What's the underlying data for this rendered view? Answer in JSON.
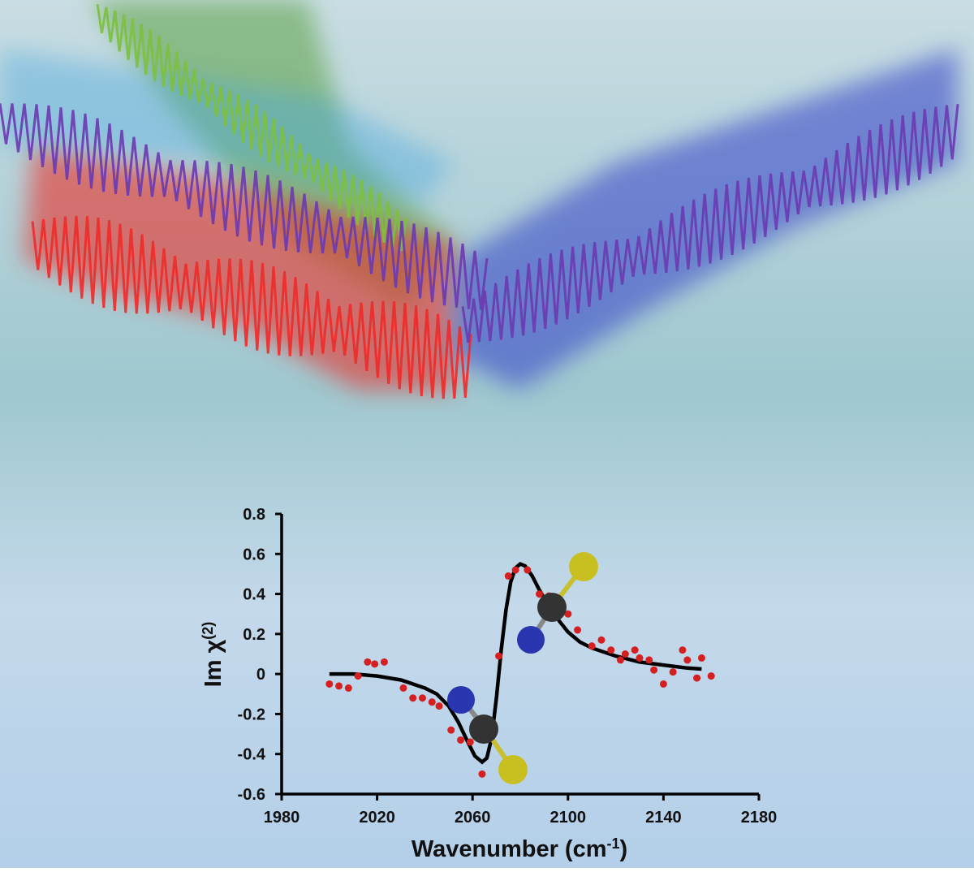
{
  "chart_data": {
    "type": "scatter",
    "xlabel": {
      "text": "Wavenumber (cm",
      "superscript": "-1",
      "suffix": ")"
    },
    "ylabel": {
      "text": "Im χ",
      "superscript": "(2)"
    },
    "xlim": [
      1980,
      2180
    ],
    "ylim": [
      -0.6,
      0.8
    ],
    "xticks": [
      1980,
      2020,
      2060,
      2100,
      2140,
      2180
    ],
    "yticks": [
      -0.6,
      -0.4,
      -0.2,
      0,
      0.2,
      0.4,
      0.6,
      0.8
    ],
    "series": [
      {
        "type": "line",
        "color": "#000000",
        "x": [
          2000,
          2010,
          2020,
          2030,
          2040,
          2045,
          2050,
          2054,
          2058,
          2061,
          2064,
          2066,
          2068,
          2070,
          2072,
          2074,
          2076,
          2078,
          2080,
          2082,
          2085,
          2088,
          2092,
          2096,
          2100,
          2105,
          2110,
          2120,
          2130,
          2140,
          2150,
          2156
        ],
        "values": [
          0,
          0,
          -0.01,
          -0.03,
          -0.07,
          -0.1,
          -0.16,
          -0.24,
          -0.34,
          -0.41,
          -0.44,
          -0.42,
          -0.32,
          -0.12,
          0.12,
          0.32,
          0.46,
          0.53,
          0.55,
          0.54,
          0.49,
          0.42,
          0.34,
          0.27,
          0.21,
          0.16,
          0.13,
          0.09,
          0.06,
          0.045,
          0.03,
          0.025
        ]
      },
      {
        "type": "scatter",
        "color": "#d42020",
        "x": [
          2000,
          2004,
          2008,
          2012,
          2016,
          2019,
          2023,
          2031,
          2035,
          2039,
          2043,
          2046,
          2051,
          2055,
          2059,
          2064,
          2067,
          2071,
          2075,
          2078,
          2083,
          2088,
          2092,
          2096,
          2100,
          2104,
          2110,
          2114,
          2118,
          2122,
          2124,
          2128,
          2130,
          2134,
          2136,
          2140,
          2144,
          2148,
          2150,
          2154,
          2156,
          2160
        ],
        "values": [
          -0.05,
          -0.06,
          -0.07,
          -0.01,
          0.06,
          0.05,
          0.06,
          -0.07,
          -0.12,
          -0.12,
          -0.14,
          -0.16,
          -0.28,
          -0.33,
          -0.34,
          -0.5,
          -0.28,
          0.09,
          0.49,
          0.52,
          0.52,
          0.4,
          0.39,
          0.36,
          0.3,
          0.22,
          0.14,
          0.17,
          0.12,
          0.07,
          0.1,
          0.12,
          0.08,
          0.07,
          0.02,
          -0.05,
          0.01,
          0.12,
          0.07,
          -0.02,
          0.08,
          -0.01
        ]
      }
    ]
  }
}
